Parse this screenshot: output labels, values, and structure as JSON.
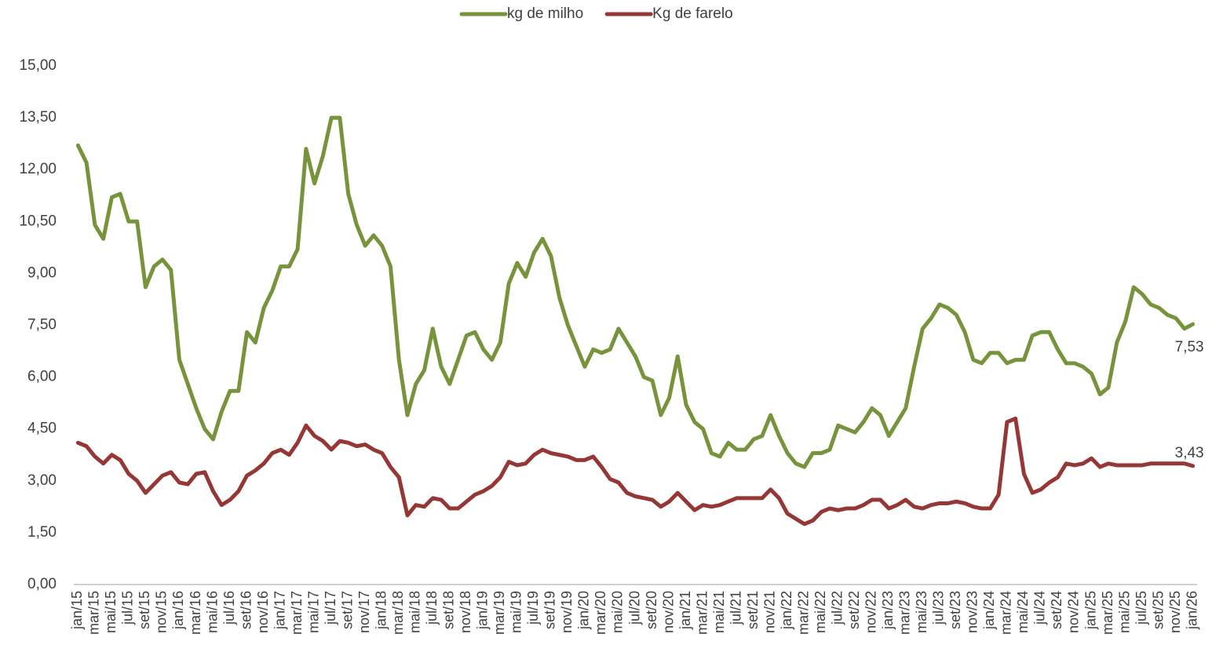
{
  "chart_data": {
    "type": "line",
    "categories": [
      "jan/15",
      null,
      "mar/15",
      null,
      "mai/15",
      null,
      "jul/15",
      null,
      "set/15",
      null,
      "nov/15",
      null,
      "jan/16",
      null,
      "mar/16",
      null,
      "mai/16",
      null,
      "jul/16",
      null,
      "set/16",
      null,
      "nov/16",
      null,
      "jan/17",
      null,
      "mar/17",
      null,
      "mai/17",
      null,
      "jul/17",
      null,
      "set/17",
      null,
      "nov/17",
      null,
      "jan/18",
      null,
      "mar/18",
      null,
      "mai/18",
      null,
      "jul/18",
      null,
      "set/18",
      null,
      "nov/18",
      null,
      "jan/19",
      null,
      "mar/19",
      null,
      "mai/19",
      null,
      "jul/19",
      null,
      "set/19",
      null,
      "nov/19",
      null,
      "jan/20",
      null,
      "mar/20",
      null,
      "mai/20",
      null,
      "jul/20",
      null,
      "set/20",
      null,
      "nov/20",
      null,
      "jan/21",
      null,
      "mar/21",
      null,
      "mai/21",
      null,
      "jul/21",
      null,
      "set/21",
      null,
      "nov/21",
      null,
      "jan/22",
      null,
      "mar/22",
      null,
      "mai/22",
      null,
      "jul/22",
      null,
      "set/22",
      null,
      "nov/22",
      null,
      "jan/23",
      null,
      "mar/23",
      null,
      "mai/23",
      null,
      "jul/23",
      null,
      "set/23",
      null,
      "nov/23",
      null,
      "jan/24",
      null,
      "mar/24",
      null,
      "mai/24",
      null,
      "jul/24",
      null,
      "set/24",
      null,
      "nov/24",
      null,
      "jan/25",
      null,
      "mar/25",
      null,
      "mai/25",
      null,
      "jul/25",
      null,
      "set/25",
      null,
      "nov/25",
      null,
      "jan/26"
    ],
    "series": [
      {
        "name": "kg de milho",
        "color": "#77933c",
        "values": [
          12.7,
          12.2,
          10.4,
          10.0,
          11.2,
          11.3,
          10.5,
          10.5,
          8.6,
          9.2,
          9.4,
          9.1,
          6.5,
          5.8,
          5.1,
          4.5,
          4.2,
          5.0,
          5.6,
          5.6,
          7.3,
          7.0,
          8.0,
          8.5,
          9.2,
          9.2,
          9.7,
          12.6,
          11.6,
          12.4,
          13.5,
          13.5,
          11.3,
          10.4,
          9.8,
          10.1,
          9.8,
          9.2,
          6.5,
          4.9,
          5.8,
          6.2,
          7.4,
          6.3,
          5.8,
          6.5,
          7.2,
          7.3,
          6.8,
          6.5,
          7.0,
          8.7,
          9.3,
          8.9,
          9.6,
          10.0,
          9.5,
          8.3,
          7.5,
          6.9,
          6.3,
          6.8,
          6.7,
          6.8,
          7.4,
          7.0,
          6.6,
          6.0,
          5.9,
          4.9,
          5.4,
          6.6,
          5.2,
          4.7,
          4.5,
          3.8,
          3.7,
          4.1,
          3.9,
          3.9,
          4.2,
          4.3,
          4.9,
          4.3,
          3.8,
          3.5,
          3.4,
          3.8,
          3.8,
          3.9,
          4.6,
          4.5,
          4.4,
          4.7,
          5.1,
          4.9,
          4.3,
          4.7,
          5.1,
          6.3,
          7.4,
          7.7,
          8.1,
          8.0,
          7.8,
          7.3,
          6.5,
          6.4,
          6.7,
          6.7,
          6.4,
          6.5,
          6.5,
          7.2,
          7.3,
          7.3,
          6.8,
          6.4,
          6.4,
          6.3,
          6.1,
          5.5,
          5.7,
          7.0,
          7.6,
          8.6,
          8.4,
          8.1,
          8.0,
          7.8,
          7.7,
          7.4,
          7.53
        ],
        "value_labels": {
          "132": "7,53"
        }
      },
      {
        "name": "Kg de farelo",
        "color": "#953735",
        "values": [
          4.1,
          4.0,
          3.7,
          3.5,
          3.75,
          3.6,
          3.2,
          3.0,
          2.65,
          2.9,
          3.15,
          3.25,
          2.95,
          2.9,
          3.2,
          3.25,
          2.7,
          2.3,
          2.45,
          2.7,
          3.15,
          3.3,
          3.5,
          3.8,
          3.9,
          3.75,
          4.1,
          4.6,
          4.3,
          4.15,
          3.9,
          4.15,
          4.1,
          4.0,
          4.05,
          3.9,
          3.8,
          3.4,
          3.1,
          2.0,
          2.3,
          2.25,
          2.5,
          2.45,
          2.2,
          2.2,
          2.4,
          2.6,
          2.7,
          2.85,
          3.1,
          3.55,
          3.45,
          3.5,
          3.75,
          3.9,
          3.8,
          3.75,
          3.7,
          3.6,
          3.6,
          3.7,
          3.4,
          3.05,
          2.95,
          2.65,
          2.55,
          2.5,
          2.45,
          2.25,
          2.4,
          2.65,
          2.4,
          2.15,
          2.3,
          2.25,
          2.3,
          2.4,
          2.5,
          2.5,
          2.5,
          2.5,
          2.75,
          2.5,
          2.05,
          1.9,
          1.75,
          1.85,
          2.1,
          2.2,
          2.15,
          2.2,
          2.2,
          2.3,
          2.45,
          2.45,
          2.2,
          2.3,
          2.45,
          2.25,
          2.2,
          2.3,
          2.35,
          2.35,
          2.4,
          2.35,
          2.25,
          2.2,
          2.2,
          2.6,
          4.7,
          4.8,
          3.2,
          2.65,
          2.75,
          2.95,
          3.1,
          3.5,
          3.45,
          3.5,
          3.65,
          3.4,
          3.5,
          3.45,
          3.45,
          3.45,
          3.45,
          3.5,
          3.5,
          3.5,
          3.5,
          3.5,
          3.43
        ],
        "value_labels": {
          "132": "3,43"
        }
      }
    ],
    "ylim": [
      0,
      15
    ],
    "yticks": [
      {
        "value": 0,
        "label": "0,00"
      },
      {
        "value": 1.5,
        "label": "1,50"
      },
      {
        "value": 3,
        "label": "3,00"
      },
      {
        "value": 4.5,
        "label": "4,50"
      },
      {
        "value": 6,
        "label": "6,00"
      },
      {
        "value": 7.5,
        "label": "7,50"
      },
      {
        "value": 9,
        "label": "9,00"
      },
      {
        "value": 10.5,
        "label": "10,50"
      },
      {
        "value": 12,
        "label": "12,00"
      },
      {
        "value": 13.5,
        "label": "13,50"
      },
      {
        "value": 15,
        "label": "15,00"
      }
    ],
    "grid": false,
    "legend": "top"
  }
}
